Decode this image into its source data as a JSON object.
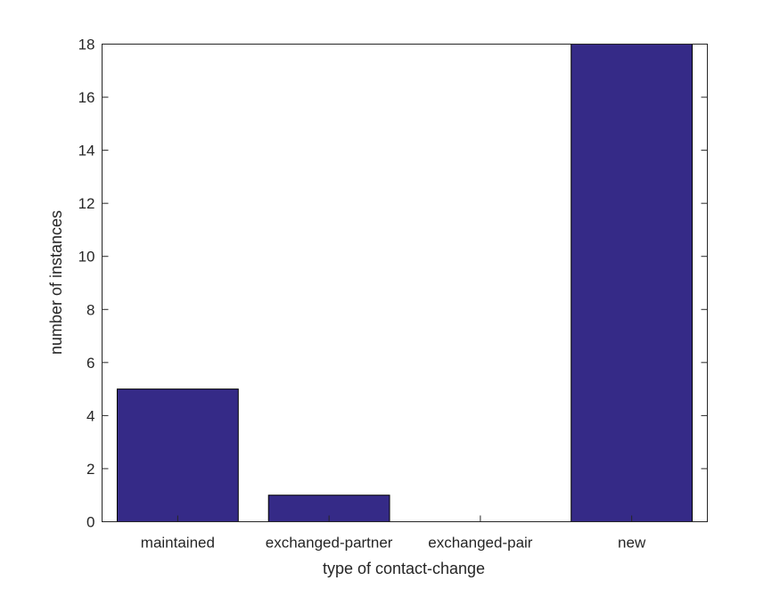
{
  "chart_data": {
    "type": "bar",
    "title": "",
    "xlabel": "type of contact-change",
    "ylabel": "number of instances",
    "categories": [
      "maintained",
      "exchanged-partner",
      "exchanged-pair",
      "new"
    ],
    "values": [
      5,
      1,
      0,
      18
    ],
    "ylim": [
      0,
      18
    ],
    "yticks": [
      0,
      2,
      4,
      6,
      8,
      10,
      12,
      14,
      16,
      18
    ],
    "grid": false,
    "legend": "none",
    "bar_color": "#352a87",
    "axis_color": "#262626"
  }
}
